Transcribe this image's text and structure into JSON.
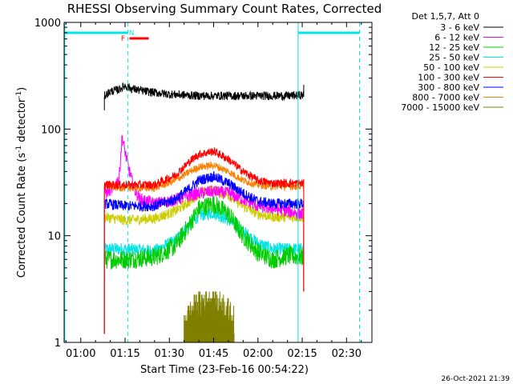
{
  "chart_data": {
    "type": "line",
    "title": "RHESSI Observing Summary Count Rates, Corrected",
    "xlabel": "Start Time (23-Feb-16 00:54:22)",
    "ylabel_main": "Corrected Count Rate (s",
    "ylabel_sup1": "-1",
    "ylabel_mid": " detector",
    "ylabel_sup2": "-1",
    "ylabel_end": ")",
    "yscale": "log",
    "ylim": [
      1,
      1000
    ],
    "xlim_minutes": [
      54.37,
      158.6
    ],
    "xticks": [
      {
        "m": 60,
        "label": "01:00"
      },
      {
        "m": 75,
        "label": "01:15"
      },
      {
        "m": 90,
        "label": "01:30"
      },
      {
        "m": 105,
        "label": "01:45"
      },
      {
        "m": 120,
        "label": "02:00"
      },
      {
        "m": 135,
        "label": "02:15"
      },
      {
        "m": 150,
        "label": "02:30"
      }
    ],
    "yticks": [
      {
        "v": 1,
        "label": "1"
      },
      {
        "v": 10,
        "label": "10"
      },
      {
        "v": 100,
        "label": "100"
      },
      {
        "v": 1000,
        "label": "1000"
      }
    ],
    "legend_title": "Det 1,5,7, Att 0",
    "legend_position": "right",
    "data_start_min": 68,
    "data_end_min": 135.5,
    "series": [
      {
        "name": "3 - 6 keV",
        "color": "#000000",
        "curve": [
          [
            68,
            205
          ],
          [
            70,
            225
          ],
          [
            73,
            235
          ],
          [
            75,
            255
          ],
          [
            77,
            240
          ],
          [
            82,
            225
          ],
          [
            90,
            212
          ],
          [
            100,
            205
          ],
          [
            110,
            205
          ],
          [
            120,
            205
          ],
          [
            130,
            205
          ],
          [
            135,
            208
          ]
        ]
      },
      {
        "name": "6 - 12 keV",
        "color": "#ff00ff",
        "curve": [
          [
            68,
            25
          ],
          [
            71,
            28
          ],
          [
            73,
            35
          ],
          [
            74,
            85
          ],
          [
            76,
            45
          ],
          [
            78,
            28
          ],
          [
            80,
            22
          ],
          [
            85,
            20
          ],
          [
            90,
            21
          ],
          [
            95,
            23
          ],
          [
            100,
            25
          ],
          [
            105,
            26
          ],
          [
            110,
            25
          ],
          [
            115,
            22
          ],
          [
            120,
            19
          ],
          [
            125,
            18
          ],
          [
            130,
            17
          ],
          [
            135,
            16
          ]
        ]
      },
      {
        "name": "12 - 25 keV",
        "color": "#00cc00",
        "curve": [
          [
            68,
            6
          ],
          [
            75,
            6
          ],
          [
            85,
            6.3
          ],
          [
            92,
            8
          ],
          [
            97,
            13
          ],
          [
            100,
            18
          ],
          [
            105,
            20
          ],
          [
            110,
            16
          ],
          [
            115,
            10
          ],
          [
            120,
            7
          ],
          [
            125,
            6
          ],
          [
            130,
            6.5
          ],
          [
            135,
            6.3
          ]
        ]
      },
      {
        "name": "25 - 50 keV",
        "color": "#00e5e5",
        "curve": [
          [
            68,
            7.5
          ],
          [
            75,
            7.5
          ],
          [
            85,
            7.2
          ],
          [
            92,
            9
          ],
          [
            97,
            13
          ],
          [
            100,
            15.5
          ],
          [
            105,
            16.5
          ],
          [
            110,
            14
          ],
          [
            115,
            11
          ],
          [
            120,
            8.5
          ],
          [
            125,
            7.5
          ],
          [
            130,
            7.5
          ],
          [
            135,
            7.5
          ]
        ]
      },
      {
        "name": "50 - 100 keV",
        "color": "#cccc00",
        "curve": [
          [
            68,
            15
          ],
          [
            75,
            14
          ],
          [
            85,
            14.5
          ],
          [
            92,
            17
          ],
          [
            97,
            21
          ],
          [
            100,
            25
          ],
          [
            105,
            27
          ],
          [
            110,
            24
          ],
          [
            115,
            19
          ],
          [
            120,
            16
          ],
          [
            125,
            15
          ],
          [
            130,
            15
          ],
          [
            135,
            15
          ]
        ]
      },
      {
        "name": "100 - 300 keV",
        "color": "#ff0000",
        "curve": [
          [
            68,
            30
          ],
          [
            75,
            30
          ],
          [
            85,
            30
          ],
          [
            92,
            37
          ],
          [
            97,
            50
          ],
          [
            100,
            58
          ],
          [
            105,
            62
          ],
          [
            110,
            52
          ],
          [
            115,
            40
          ],
          [
            120,
            33
          ],
          [
            125,
            31
          ],
          [
            130,
            31
          ],
          [
            135,
            31
          ]
        ]
      },
      {
        "name": "300 - 800 keV",
        "color": "#0000ff",
        "curve": [
          [
            68,
            20
          ],
          [
            75,
            19
          ],
          [
            85,
            19
          ],
          [
            92,
            22
          ],
          [
            97,
            28
          ],
          [
            100,
            33
          ],
          [
            105,
            36
          ],
          [
            110,
            31
          ],
          [
            115,
            25
          ],
          [
            120,
            21
          ],
          [
            125,
            20
          ],
          [
            130,
            20
          ],
          [
            135,
            20
          ]
        ]
      },
      {
        "name": "800 - 7000 keV",
        "color": "#ff8000",
        "curve": [
          [
            68,
            29
          ],
          [
            75,
            28
          ],
          [
            85,
            28
          ],
          [
            92,
            33
          ],
          [
            97,
            40
          ],
          [
            100,
            44
          ],
          [
            105,
            46
          ],
          [
            110,
            40
          ],
          [
            115,
            33
          ],
          [
            120,
            30
          ],
          [
            125,
            29
          ],
          [
            130,
            29
          ],
          [
            135,
            29
          ]
        ]
      },
      {
        "name": "7000 - 15000 keV",
        "color": "#808000",
        "curve": [
          [
            95,
            1.6
          ],
          [
            98,
            2.1
          ],
          [
            100,
            2.4
          ],
          [
            103,
            2.6
          ],
          [
            106,
            2.5
          ],
          [
            109,
            2.2
          ],
          [
            112,
            1.6
          ]
        ]
      }
    ],
    "flag_bars": [
      {
        "name": "saa-bar-left",
        "color": "#00e5e5",
        "start_min": 54.37,
        "end_min": 76
      },
      {
        "name": "saa-bar-right",
        "color": "#00e5e5",
        "start_min": 133.6,
        "end_min": 154.4
      },
      {
        "name": "flare-bar",
        "color": "#ff0000",
        "start_min": 76.5,
        "end_min": 83
      }
    ],
    "flag_letters": [
      {
        "name": "flare-flag-letter",
        "text": "F",
        "color": "#ff0000",
        "m": 74.3
      },
      {
        "name": "night-flag-letter",
        "text": "N",
        "color": "#00e5e5",
        "m": 77.2
      }
    ],
    "vertical_lines": [
      {
        "name": "night-start-line",
        "color": "#00e5e5",
        "m": 54.6,
        "style": "solid"
      },
      {
        "name": "night-end-line",
        "color": "#00e5e5",
        "m": 76,
        "style": "dashed"
      },
      {
        "name": "day-start-line",
        "color": "#00e5e5",
        "m": 133.6,
        "style": "solid"
      },
      {
        "name": "day-end-line",
        "color": "#00e5e5",
        "m": 154.4,
        "style": "dashed"
      }
    ]
  },
  "footer_date": "26-Oct-2021 21:39"
}
